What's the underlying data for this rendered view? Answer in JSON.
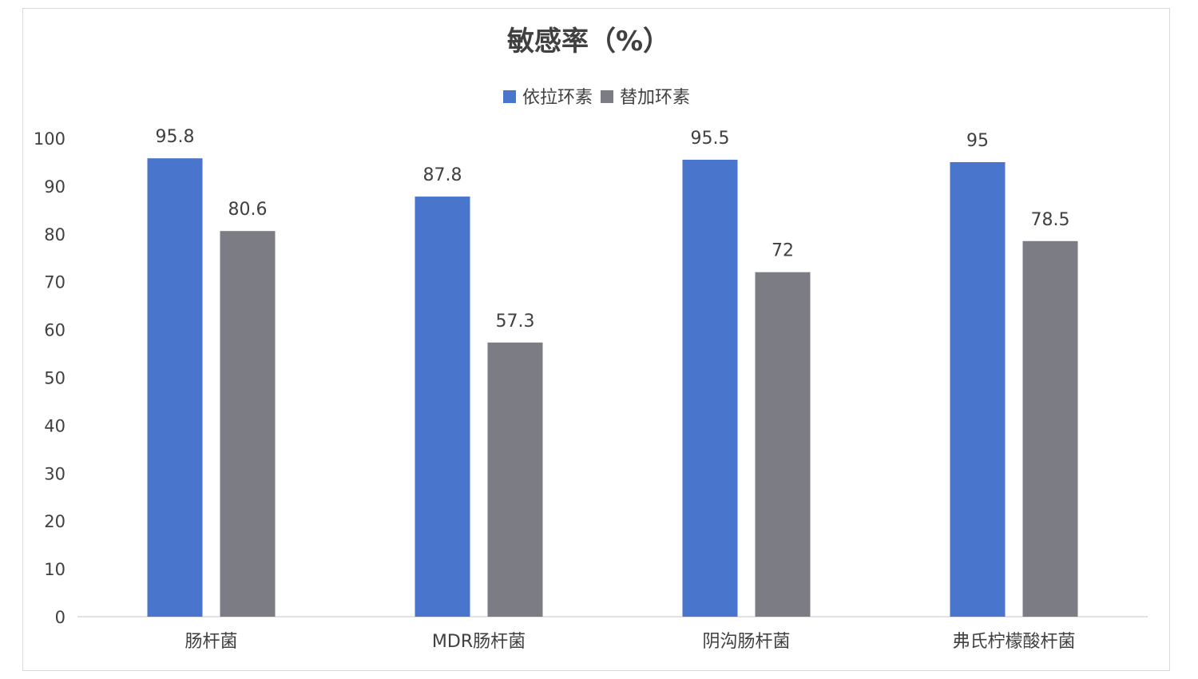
{
  "chart_data": {
    "type": "bar",
    "title": "敏感率（%）",
    "xlabel": "",
    "ylabel": "",
    "categories": [
      "肠杆菌",
      "MDR肠杆菌",
      "阴沟肠杆菌",
      "弗氏柠檬酸杆菌"
    ],
    "series": [
      {
        "name": "依拉环素",
        "color": "#4a75cc",
        "values": [
          95.8,
          87.8,
          95.5,
          95
        ],
        "labels": [
          "95.8",
          "87.8",
          "95.5",
          "95"
        ]
      },
      {
        "name": "替加环素",
        "color": "#7c7d84",
        "values": [
          80.6,
          57.3,
          72,
          78.5
        ],
        "labels": [
          "80.6",
          "57.3",
          "72",
          "78.5"
        ]
      }
    ],
    "ylim": [
      0,
      100
    ],
    "yticks": [
      0,
      10,
      20,
      30,
      40,
      50,
      60,
      70,
      80,
      90,
      100
    ],
    "ytick_labels": [
      "0",
      "10",
      "20",
      "30",
      "40",
      "50",
      "60",
      "70",
      "80",
      "90",
      "100"
    ],
    "grid": false,
    "legend_position": "top"
  }
}
